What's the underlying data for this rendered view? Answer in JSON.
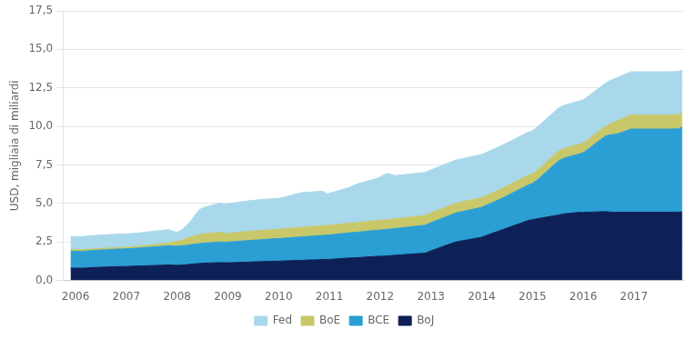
{
  "chart_data": {
    "type": "area",
    "stacked": true,
    "ylabel": "USD, migliaia di miliardi",
    "xlim": [
      2005.75,
      2017.97
    ],
    "xticks": [
      2006,
      2007,
      2008,
      2009,
      2010,
      2011,
      2012,
      2013,
      2014,
      2015,
      2016,
      2017
    ],
    "ylim": [
      0,
      17.5
    ],
    "yticks": [
      {
        "value": 0.0,
        "label": "0,0"
      },
      {
        "value": 2.5,
        "label": "2,5"
      },
      {
        "value": 5.0,
        "label": "5,0"
      },
      {
        "value": 7.5,
        "label": "7,5"
      },
      {
        "value": 10.0,
        "label": "10,0"
      },
      {
        "value": 12.5,
        "label": "12,5"
      },
      {
        "value": 15.0,
        "label": "15,0"
      },
      {
        "value": 17.5,
        "label": "17,5"
      }
    ],
    "grid": "y",
    "legend": "bottom",
    "x": [
      2005.9,
      2005.9843,
      2006.0685,
      2006.1528,
      2006.2371,
      2006.3213,
      2006.4056,
      2006.4899,
      2006.5741,
      2006.6584,
      2006.7427,
      2006.8269,
      2006.9112,
      2006.9955,
      2007.0797,
      2007.164,
      2007.2483,
      2007.3325,
      2007.4168,
      2007.501,
      2007.5853,
      2007.6696,
      2007.7538,
      2007.8381,
      2007.9224,
      2008.0066,
      2008.0909,
      2008.1752,
      2008.2594,
      2008.3437,
      2008.428,
      2008.5122,
      2008.5965,
      2008.6808,
      2008.765,
      2008.8493,
      2008.9336,
      2009.0178,
      2009.1021,
      2009.1864,
      2009.2706,
      2009.3549,
      2009.4392,
      2009.5234,
      2009.6077,
      2009.692,
      2009.7762,
      2009.8605,
      2009.9448,
      2010.029,
      2010.1133,
      2010.1976,
      2010.2818,
      2010.3661,
      2010.4503,
      2010.5346,
      2010.6189,
      2010.7031,
      2010.7874,
      2010.8717,
      2010.9559,
      2011.0402,
      2011.1245,
      2011.2087,
      2011.293,
      2011.3773,
      2011.4615,
      2011.5458,
      2011.6301,
      2011.7143,
      2011.7986,
      2011.8829,
      2011.9671,
      2012.0514,
      2012.1357,
      2012.2199,
      2012.3042,
      2012.3885,
      2012.4727,
      2012.557,
      2012.6413,
      2012.7255,
      2012.8098,
      2012.8941,
      2012.9783,
      2013.0626,
      2013.1469,
      2013.2311,
      2013.3154,
      2013.3997,
      2013.4839,
      2013.5682,
      2013.6524,
      2013.7367,
      2013.821,
      2013.9052,
      2013.9895,
      2014.0738,
      2014.158,
      2014.2423,
      2014.3266,
      2014.4108,
      2014.4951,
      2014.5794,
      2014.6636,
      2014.7479,
      2014.8322,
      2014.9164,
      2015.0007,
      2015.085,
      2015.1692,
      2015.2535,
      2015.3378,
      2015.422,
      2015.5063,
      2015.5906,
      2015.6748,
      2015.7591,
      2015.8434,
      2015.9276,
      2016.0119,
      2016.0962,
      2016.1804,
      2016.2647,
      2016.349,
      2016.4332,
      2016.5175,
      2016.6017,
      2016.686,
      2016.7703,
      2016.8545,
      2016.9388,
      2017.0231,
      2017.1073,
      2017.1916,
      2017.2759,
      2017.3601,
      2017.4444,
      2017.5287,
      2017.6129,
      2017.6972,
      2017.7815,
      2017.8657,
      2017.95
    ],
    "series": [
      {
        "name": "BoJ",
        "color": "#0d2057",
        "values": [
          0.8,
          0.8,
          0.8,
          0.8,
          0.82,
          0.84,
          0.85,
          0.86,
          0.87,
          0.88,
          0.89,
          0.9,
          0.9,
          0.91,
          0.92,
          0.93,
          0.94,
          0.95,
          0.96,
          0.97,
          0.98,
          0.99,
          1.0,
          1.01,
          1.0,
          0.98,
          1.0,
          1.02,
          1.05,
          1.08,
          1.1,
          1.12,
          1.13,
          1.14,
          1.15,
          1.16,
          1.15,
          1.15,
          1.16,
          1.17,
          1.18,
          1.19,
          1.2,
          1.21,
          1.22,
          1.23,
          1.24,
          1.25,
          1.25,
          1.26,
          1.27,
          1.28,
          1.29,
          1.3,
          1.31,
          1.32,
          1.33,
          1.34,
          1.35,
          1.36,
          1.37,
          1.38,
          1.4,
          1.42,
          1.44,
          1.46,
          1.47,
          1.48,
          1.5,
          1.52,
          1.54,
          1.56,
          1.57,
          1.58,
          1.6,
          1.62,
          1.64,
          1.66,
          1.68,
          1.7,
          1.72,
          1.74,
          1.76,
          1.78,
          1.9,
          2.0,
          2.1,
          2.2,
          2.3,
          2.4,
          2.5,
          2.55,
          2.6,
          2.65,
          2.7,
          2.75,
          2.8,
          2.9,
          3.0,
          3.1,
          3.2,
          3.3,
          3.4,
          3.5,
          3.6,
          3.7,
          3.8,
          3.9,
          3.95,
          4.0,
          4.05,
          4.1,
          4.15,
          4.2,
          4.25,
          4.3,
          4.35,
          4.37,
          4.4,
          4.42,
          4.42,
          4.43,
          4.44,
          4.45,
          4.46,
          4.47,
          4.45,
          4.43,
          4.43,
          4.43,
          4.43,
          4.43,
          4.43,
          4.43,
          4.43,
          4.43,
          4.43,
          4.43,
          4.43,
          4.43,
          4.43,
          4.44,
          4.44,
          4.45
        ]
      },
      {
        "name": "BCE",
        "color": "#2b9fd4",
        "values": [
          1.1,
          1.1,
          1.1,
          1.1,
          1.1,
          1.1,
          1.11,
          1.12,
          1.12,
          1.13,
          1.13,
          1.14,
          1.14,
          1.15,
          1.15,
          1.16,
          1.17,
          1.18,
          1.19,
          1.2,
          1.21,
          1.22,
          1.23,
          1.24,
          1.24,
          1.24,
          1.25,
          1.26,
          1.27,
          1.28,
          1.29,
          1.3,
          1.31,
          1.32,
          1.33,
          1.34,
          1.34,
          1.35,
          1.36,
          1.37,
          1.38,
          1.39,
          1.4,
          1.41,
          1.42,
          1.43,
          1.44,
          1.45,
          1.46,
          1.47,
          1.48,
          1.49,
          1.5,
          1.51,
          1.52,
          1.53,
          1.54,
          1.55,
          1.56,
          1.57,
          1.58,
          1.59,
          1.6,
          1.61,
          1.62,
          1.63,
          1.64,
          1.65,
          1.66,
          1.67,
          1.68,
          1.69,
          1.7,
          1.71,
          1.72,
          1.73,
          1.74,
          1.75,
          1.76,
          1.77,
          1.78,
          1.79,
          1.8,
          1.81,
          1.82,
          1.83,
          1.84,
          1.85,
          1.86,
          1.87,
          1.88,
          1.89,
          1.9,
          1.91,
          1.92,
          1.93,
          1.94,
          1.96,
          1.98,
          2.0,
          2.03,
          2.06,
          2.1,
          2.14,
          2.18,
          2.22,
          2.26,
          2.3,
          2.35,
          2.5,
          2.7,
          2.9,
          3.1,
          3.3,
          3.5,
          3.6,
          3.65,
          3.7,
          3.75,
          3.8,
          3.9,
          4.1,
          4.3,
          4.5,
          4.7,
          4.9,
          5.0,
          5.05,
          5.1,
          5.2,
          5.3,
          5.4,
          5.4,
          5.4,
          5.4,
          5.4,
          5.4,
          5.4,
          5.4,
          5.4,
          5.4,
          5.4,
          5.4,
          5.5
        ]
      },
      {
        "name": "BoE",
        "color": "#c8c86a",
        "values": [
          0.1,
          0.1,
          0.1,
          0.1,
          0.1,
          0.1,
          0.1,
          0.1,
          0.1,
          0.1,
          0.1,
          0.1,
          0.1,
          0.1,
          0.1,
          0.1,
          0.11,
          0.12,
          0.13,
          0.14,
          0.15,
          0.16,
          0.17,
          0.18,
          0.28,
          0.32,
          0.38,
          0.44,
          0.5,
          0.54,
          0.58,
          0.6,
          0.61,
          0.62,
          0.63,
          0.64,
          0.55,
          0.56,
          0.57,
          0.58,
          0.59,
          0.6,
          0.6,
          0.6,
          0.6,
          0.6,
          0.6,
          0.6,
          0.6,
          0.61,
          0.61,
          0.62,
          0.62,
          0.62,
          0.62,
          0.62,
          0.62,
          0.62,
          0.62,
          0.62,
          0.62,
          0.63,
          0.63,
          0.63,
          0.63,
          0.63,
          0.63,
          0.63,
          0.63,
          0.63,
          0.63,
          0.63,
          0.63,
          0.63,
          0.63,
          0.63,
          0.63,
          0.63,
          0.63,
          0.63,
          0.63,
          0.63,
          0.63,
          0.63,
          0.63,
          0.63,
          0.63,
          0.63,
          0.63,
          0.63,
          0.63,
          0.63,
          0.63,
          0.63,
          0.63,
          0.63,
          0.63,
          0.63,
          0.63,
          0.63,
          0.63,
          0.63,
          0.63,
          0.63,
          0.63,
          0.63,
          0.63,
          0.63,
          0.63,
          0.63,
          0.63,
          0.63,
          0.63,
          0.63,
          0.63,
          0.63,
          0.63,
          0.63,
          0.63,
          0.63,
          0.63,
          0.63,
          0.63,
          0.63,
          0.63,
          0.63,
          0.7,
          0.8,
          0.85,
          0.88,
          0.9,
          0.92,
          0.92,
          0.92,
          0.92,
          0.92,
          0.92,
          0.92,
          0.92,
          0.92,
          0.92,
          0.92,
          0.92,
          0.92
        ]
      },
      {
        "name": "Fed",
        "color": "#a8d8ea",
        "values": [
          0.85,
          0.85,
          0.85,
          0.85,
          0.87,
          0.87,
          0.87,
          0.87,
          0.87,
          0.87,
          0.87,
          0.87,
          0.87,
          0.87,
          0.87,
          0.87,
          0.87,
          0.87,
          0.87,
          0.87,
          0.87,
          0.87,
          0.87,
          0.87,
          0.65,
          0.6,
          0.65,
          0.8,
          1.0,
          1.3,
          1.6,
          1.7,
          1.75,
          1.8,
          1.85,
          1.9,
          1.9,
          1.92,
          1.94,
          1.95,
          1.96,
          1.97,
          1.98,
          1.99,
          2.0,
          2.0,
          2.0,
          2.0,
          2.0,
          2.0,
          2.05,
          2.1,
          2.15,
          2.2,
          2.25,
          2.25,
          2.25,
          2.25,
          2.25,
          2.25,
          2.05,
          2.1,
          2.15,
          2.2,
          2.25,
          2.3,
          2.4,
          2.5,
          2.55,
          2.6,
          2.65,
          2.7,
          2.75,
          2.9,
          3.0,
          2.9,
          2.8,
          2.8,
          2.8,
          2.8,
          2.8,
          2.8,
          2.8,
          2.8,
          2.8,
          2.8,
          2.8,
          2.8,
          2.8,
          2.8,
          2.8,
          2.8,
          2.8,
          2.8,
          2.8,
          2.8,
          2.8,
          2.8,
          2.8,
          2.8,
          2.8,
          2.8,
          2.8,
          2.8,
          2.8,
          2.8,
          2.8,
          2.8,
          2.8,
          2.8,
          2.8,
          2.8,
          2.8,
          2.8,
          2.8,
          2.8,
          2.8,
          2.8,
          2.8,
          2.8,
          2.8,
          2.8,
          2.8,
          2.8,
          2.8,
          2.8,
          2.8,
          2.8,
          2.8,
          2.8,
          2.8,
          2.8,
          2.8,
          2.8,
          2.8,
          2.8,
          2.8,
          2.8,
          2.8,
          2.8,
          2.8,
          2.8,
          2.8,
          2.8
        ]
      }
    ]
  }
}
